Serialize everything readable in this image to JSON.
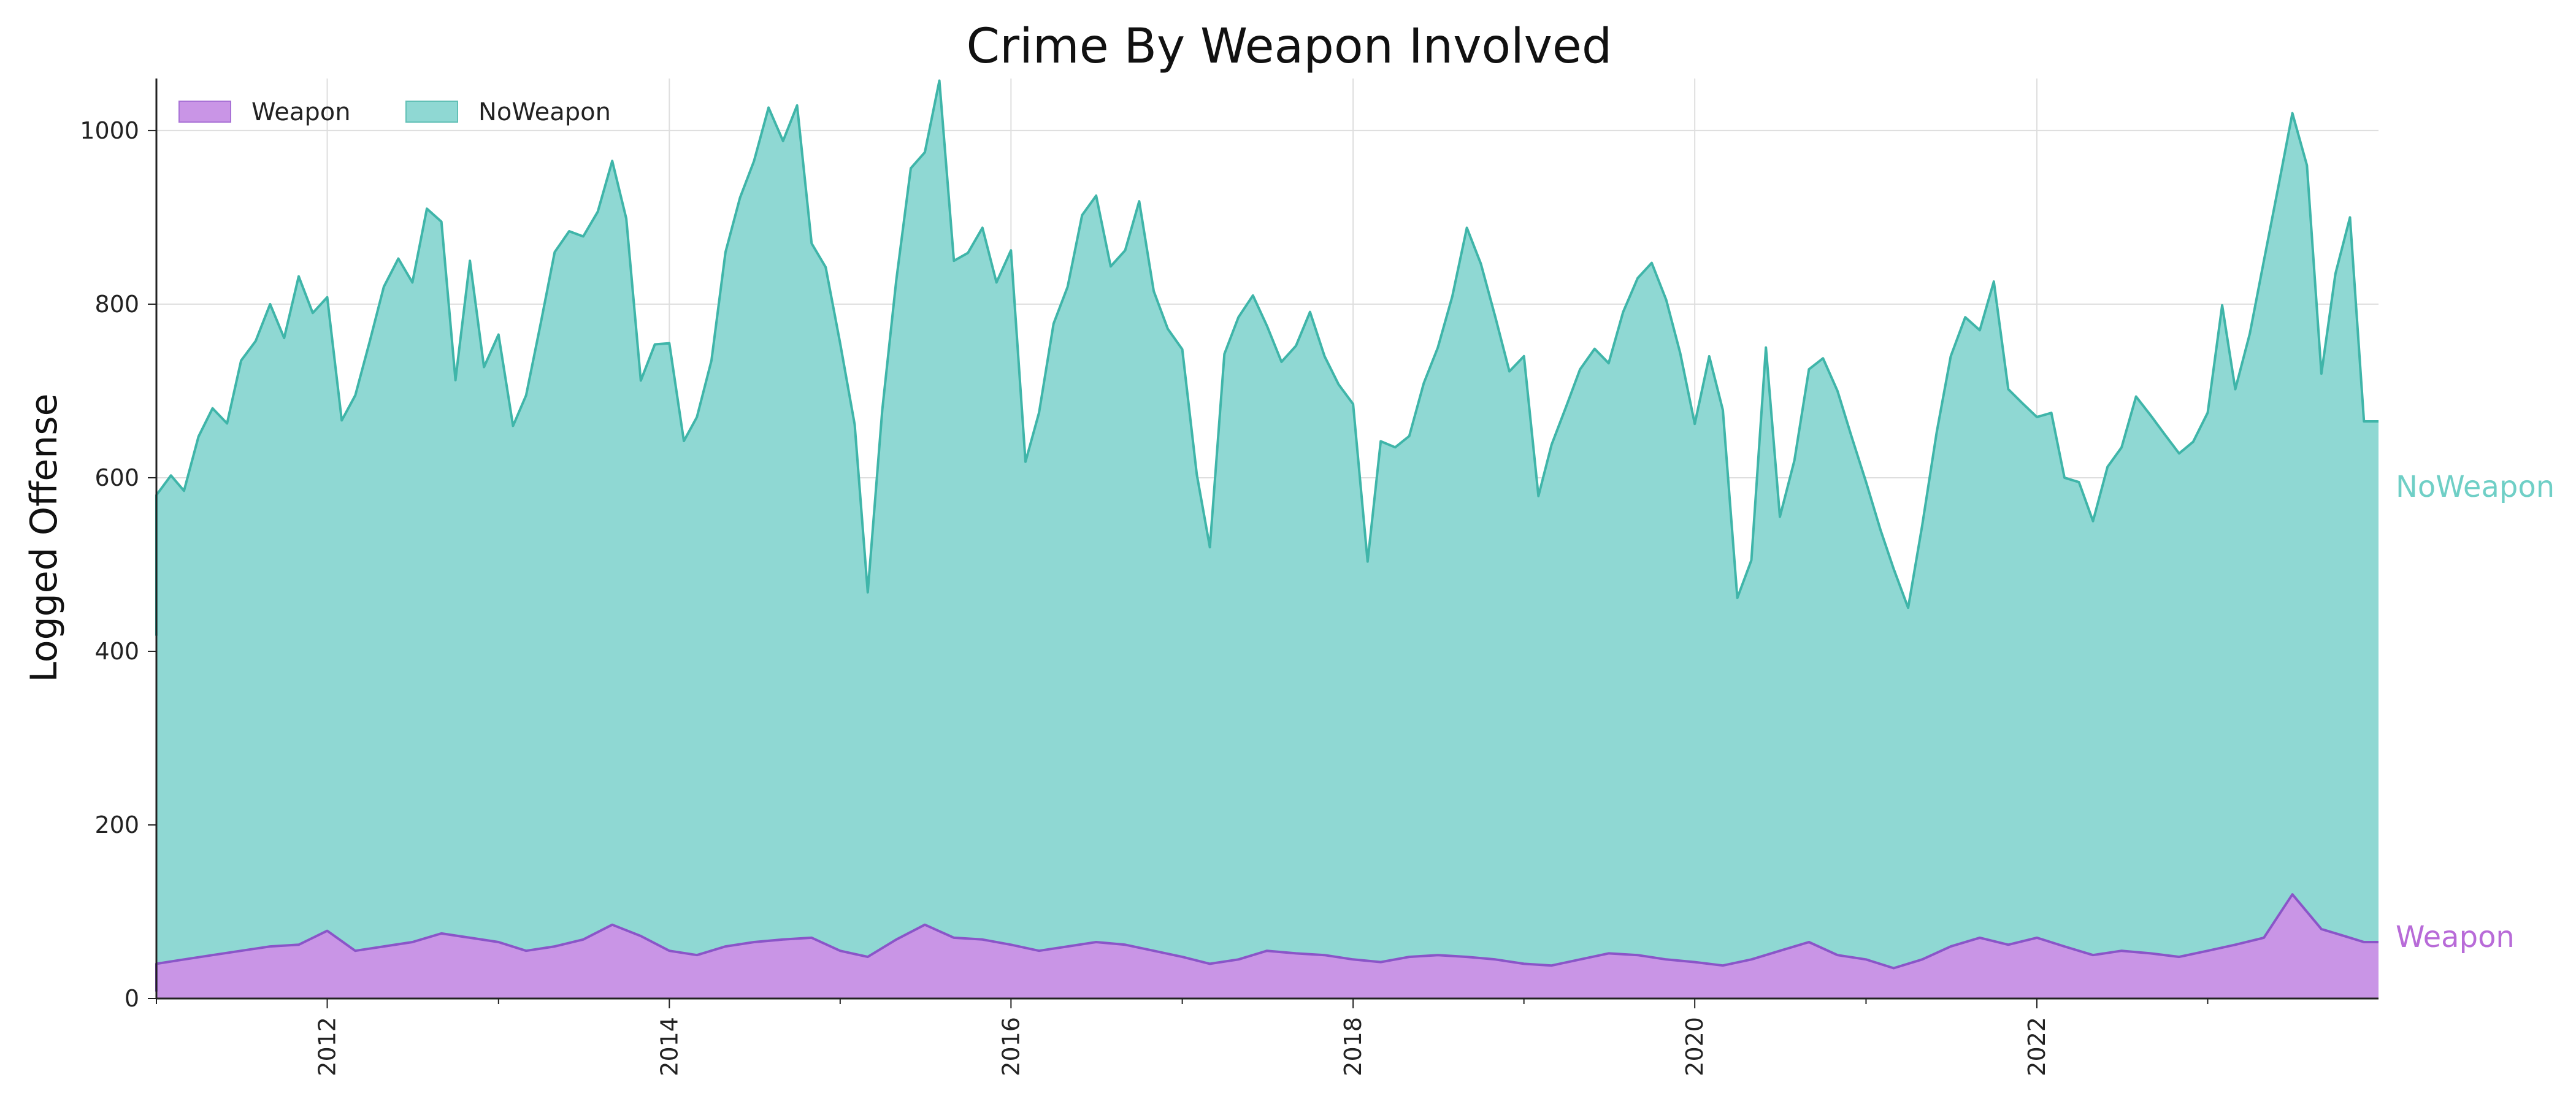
{
  "chart_data": {
    "type": "area",
    "stacked": true,
    "title": "Crime By Weapon Involved",
    "xlabel": "",
    "ylabel": "Logged Offense",
    "xlim": [
      "2011-01-01",
      "2024-01-01"
    ],
    "ylim": [
      0,
      1060
    ],
    "x_ticks": [
      "2012",
      "2014",
      "2016",
      "2018",
      "2020",
      "2022"
    ],
    "y_ticks": [
      "0",
      "200",
      "400",
      "600",
      "800",
      "1000"
    ],
    "grid": true,
    "legend": {
      "placement": "top-left",
      "entries": [
        "Weapon",
        "NoWeapon"
      ]
    },
    "series": [
      {
        "name": "Weapon",
        "color": "#b86bd8",
        "line_color": "#8a55c8",
        "points": [
          [
            "2011-01",
            40
          ],
          [
            "2011-03",
            45
          ],
          [
            "2011-05",
            50
          ],
          [
            "2011-07",
            55
          ],
          [
            "2011-09",
            60
          ],
          [
            "2011-11",
            62
          ],
          [
            "2012-01",
            78
          ],
          [
            "2012-03",
            55
          ],
          [
            "2012-05",
            60
          ],
          [
            "2012-07",
            65
          ],
          [
            "2012-09",
            75
          ],
          [
            "2012-11",
            70
          ],
          [
            "2013-01",
            65
          ],
          [
            "2013-03",
            55
          ],
          [
            "2013-05",
            60
          ],
          [
            "2013-07",
            68
          ],
          [
            "2013-09",
            85
          ],
          [
            "2013-11",
            72
          ],
          [
            "2014-01",
            55
          ],
          [
            "2014-03",
            50
          ],
          [
            "2014-05",
            60
          ],
          [
            "2014-07",
            65
          ],
          [
            "2014-09",
            68
          ],
          [
            "2014-11",
            70
          ],
          [
            "2015-01",
            55
          ],
          [
            "2015-03",
            48
          ],
          [
            "2015-05",
            68
          ],
          [
            "2015-07",
            85
          ],
          [
            "2015-09",
            70
          ],
          [
            "2015-11",
            68
          ],
          [
            "2016-01",
            62
          ],
          [
            "2016-03",
            55
          ],
          [
            "2016-05",
            60
          ],
          [
            "2016-07",
            65
          ],
          [
            "2016-09",
            62
          ],
          [
            "2016-11",
            55
          ],
          [
            "2017-01",
            48
          ],
          [
            "2017-03",
            40
          ],
          [
            "2017-05",
            45
          ],
          [
            "2017-07",
            55
          ],
          [
            "2017-09",
            52
          ],
          [
            "2017-11",
            50
          ],
          [
            "2018-01",
            45
          ],
          [
            "2018-03",
            42
          ],
          [
            "2018-05",
            48
          ],
          [
            "2018-07",
            50
          ],
          [
            "2018-09",
            48
          ],
          [
            "2018-11",
            45
          ],
          [
            "2019-01",
            40
          ],
          [
            "2019-03",
            38
          ],
          [
            "2019-05",
            45
          ],
          [
            "2019-07",
            52
          ],
          [
            "2019-09",
            50
          ],
          [
            "2019-11",
            45
          ],
          [
            "2020-01",
            42
          ],
          [
            "2020-03",
            38
          ],
          [
            "2020-05",
            45
          ],
          [
            "2020-07",
            55
          ],
          [
            "2020-09",
            65
          ],
          [
            "2020-11",
            50
          ],
          [
            "2021-01",
            45
          ],
          [
            "2021-03",
            35
          ],
          [
            "2021-05",
            45
          ],
          [
            "2021-07",
            60
          ],
          [
            "2021-09",
            70
          ],
          [
            "2021-11",
            62
          ],
          [
            "2022-01",
            70
          ],
          [
            "2022-03",
            60
          ],
          [
            "2022-05",
            50
          ],
          [
            "2022-07",
            55
          ],
          [
            "2022-09",
            52
          ],
          [
            "2022-11",
            48
          ],
          [
            "2023-01",
            55
          ],
          [
            "2023-03",
            62
          ],
          [
            "2023-05",
            70
          ],
          [
            "2023-07",
            120
          ],
          [
            "2023-09",
            80
          ],
          [
            "2023-11",
            70
          ],
          [
            "2023-12",
            65
          ]
        ]
      },
      {
        "name": "NoWeapon",
        "color": "#6fcfc6",
        "line_color": "#3fb5a9",
        "points": [
          [
            "2011-01",
            540
          ],
          [
            "2011-02",
            560
          ],
          [
            "2011-03",
            540
          ],
          [
            "2011-04",
            600
          ],
          [
            "2011-05",
            630
          ],
          [
            "2011-06",
            610
          ],
          [
            "2011-07",
            680
          ],
          [
            "2011-08",
            700
          ],
          [
            "2011-09",
            740
          ],
          [
            "2011-10",
            700
          ],
          [
            "2011-11",
            770
          ],
          [
            "2011-12",
            720
          ],
          [
            "2012-01",
            730
          ],
          [
            "2012-02",
            600
          ],
          [
            "2012-03",
            640
          ],
          [
            "2012-04",
            700
          ],
          [
            "2012-05",
            760
          ],
          [
            "2012-06",
            790
          ],
          [
            "2012-07",
            760
          ],
          [
            "2012-08",
            840
          ],
          [
            "2012-09",
            820
          ],
          [
            "2012-10",
            640
          ],
          [
            "2012-11",
            780
          ],
          [
            "2012-12",
            660
          ],
          [
            "2013-01",
            700
          ],
          [
            "2013-02",
            600
          ],
          [
            "2013-03",
            640
          ],
          [
            "2013-04",
            720
          ],
          [
            "2013-05",
            800
          ],
          [
            "2013-06",
            820
          ],
          [
            "2013-07",
            810
          ],
          [
            "2013-08",
            830
          ],
          [
            "2013-09",
            880
          ],
          [
            "2013-10",
            820
          ],
          [
            "2013-11",
            640
          ],
          [
            "2013-12",
            690
          ],
          [
            "2014-01",
            700
          ],
          [
            "2014-02",
            590
          ],
          [
            "2014-03",
            620
          ],
          [
            "2014-04",
            680
          ],
          [
            "2014-05",
            800
          ],
          [
            "2014-06",
            860
          ],
          [
            "2014-07",
            900
          ],
          [
            "2014-08",
            960
          ],
          [
            "2014-09",
            920
          ],
          [
            "2014-10",
            960
          ],
          [
            "2014-11",
            800
          ],
          [
            "2014-12",
            780
          ],
          [
            "2015-01",
            700
          ],
          [
            "2015-02",
            610
          ],
          [
            "2015-03",
            420
          ],
          [
            "2015-04",
            620
          ],
          [
            "2015-05",
            760
          ],
          [
            "2015-06",
            880
          ],
          [
            "2015-07",
            890
          ],
          [
            "2015-08",
            980
          ],
          [
            "2015-09",
            780
          ],
          [
            "2015-10",
            790
          ],
          [
            "2015-11",
            820
          ],
          [
            "2015-12",
            760
          ],
          [
            "2016-01",
            800
          ],
          [
            "2016-02",
            560
          ],
          [
            "2016-03",
            620
          ],
          [
            "2016-04",
            720
          ],
          [
            "2016-05",
            760
          ],
          [
            "2016-06",
            840
          ],
          [
            "2016-07",
            860
          ],
          [
            "2016-08",
            780
          ],
          [
            "2016-09",
            800
          ],
          [
            "2016-10",
            860
          ],
          [
            "2016-11",
            760
          ],
          [
            "2016-12",
            720
          ],
          [
            "2017-01",
            700
          ],
          [
            "2017-02",
            560
          ],
          [
            "2017-03",
            480
          ],
          [
            "2017-04",
            700
          ],
          [
            "2017-05",
            740
          ],
          [
            "2017-06",
            760
          ],
          [
            "2017-07",
            720
          ],
          [
            "2017-08",
            680
          ],
          [
            "2017-09",
            700
          ],
          [
            "2017-10",
            740
          ],
          [
            "2017-11",
            690
          ],
          [
            "2017-12",
            660
          ],
          [
            "2018-01",
            640
          ],
          [
            "2018-02",
            460
          ],
          [
            "2018-03",
            600
          ],
          [
            "2018-04",
            590
          ],
          [
            "2018-05",
            600
          ],
          [
            "2018-06",
            660
          ],
          [
            "2018-07",
            700
          ],
          [
            "2018-08",
            760
          ],
          [
            "2018-09",
            840
          ],
          [
            "2018-10",
            800
          ],
          [
            "2018-11",
            740
          ],
          [
            "2018-12",
            680
          ],
          [
            "2019-01",
            700
          ],
          [
            "2019-02",
            540
          ],
          [
            "2019-03",
            600
          ],
          [
            "2019-04",
            640
          ],
          [
            "2019-05",
            680
          ],
          [
            "2019-06",
            700
          ],
          [
            "2019-07",
            680
          ],
          [
            "2019-08",
            740
          ],
          [
            "2019-09",
            780
          ],
          [
            "2019-10",
            800
          ],
          [
            "2019-11",
            760
          ],
          [
            "2019-12",
            700
          ],
          [
            "2020-01",
            620
          ],
          [
            "2020-02",
            700
          ],
          [
            "2020-03",
            640
          ],
          [
            "2020-04",
            420
          ],
          [
            "2020-05",
            460
          ],
          [
            "2020-06",
            700
          ],
          [
            "2020-07",
            500
          ],
          [
            "2020-08",
            560
          ],
          [
            "2020-09",
            660
          ],
          [
            "2020-10",
            680
          ],
          [
            "2020-11",
            650
          ],
          [
            "2020-12",
            600
          ],
          [
            "2021-01",
            550
          ],
          [
            "2021-02",
            500
          ],
          [
            "2021-03",
            460
          ],
          [
            "2021-04",
            410
          ],
          [
            "2021-05",
            500
          ],
          [
            "2021-06",
            600
          ],
          [
            "2021-07",
            680
          ],
          [
            "2021-08",
            720
          ],
          [
            "2021-09",
            700
          ],
          [
            "2021-10",
            760
          ],
          [
            "2021-11",
            640
          ],
          [
            "2021-12",
            620
          ],
          [
            "2022-01",
            600
          ],
          [
            "2022-02",
            610
          ],
          [
            "2022-03",
            540
          ],
          [
            "2022-04",
            540
          ],
          [
            "2022-05",
            500
          ],
          [
            "2022-06",
            560
          ],
          [
            "2022-07",
            580
          ],
          [
            "2022-08",
            640
          ],
          [
            "2022-09",
            620
          ],
          [
            "2022-10",
            600
          ],
          [
            "2022-11",
            580
          ],
          [
            "2022-12",
            590
          ],
          [
            "2023-01",
            620
          ],
          [
            "2023-02",
            740
          ],
          [
            "2023-03",
            640
          ],
          [
            "2023-04",
            700
          ],
          [
            "2023-05",
            780
          ],
          [
            "2023-06",
            840
          ],
          [
            "2023-07",
            900
          ],
          [
            "2023-08",
            860
          ],
          [
            "2023-09",
            640
          ],
          [
            "2023-10",
            760
          ],
          [
            "2023-11",
            830
          ],
          [
            "2023-12",
            600
          ]
        ]
      }
    ],
    "end_labels": [
      "NoWeapon",
      "Weapon"
    ]
  }
}
